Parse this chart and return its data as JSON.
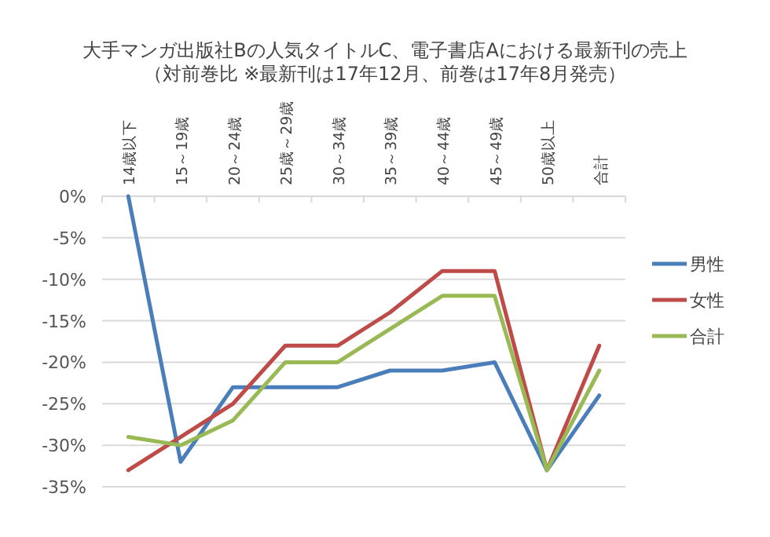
{
  "chart_data": {
    "type": "line",
    "title": "大手マンガ出版社Bの人気タイトルC、電子書店Aにおける最新刊の売上",
    "subtitle": "（対前巻比 ※最新刊は17年12月、前巻は17年8月発売）",
    "categories": [
      "14歳以下",
      "15～19歳",
      "20～24歳",
      "25歳～29歳",
      "30～34歳",
      "35～39歳",
      "40～44歳",
      "45～49歳",
      "50歳以上",
      "合計"
    ],
    "series": [
      {
        "name": "男性",
        "color": "#4a7ebb",
        "values": [
          0,
          -32,
          -23,
          -23,
          -23,
          -21,
          -21,
          -20,
          -33,
          -24
        ]
      },
      {
        "name": "女性",
        "color": "#be4b48",
        "values": [
          -33,
          -29,
          -25,
          -18,
          -18,
          -14,
          -9,
          -9,
          -33,
          -18
        ]
      },
      {
        "name": "合計",
        "color": "#98b954",
        "values": [
          -29,
          -30,
          -27,
          -20,
          -20,
          -16,
          -12,
          -12,
          -33,
          -21
        ]
      }
    ],
    "ylim": [
      -35,
      0
    ],
    "yticks": [
      {
        "value": 0,
        "label": "0%"
      },
      {
        "value": -5,
        "label": "-5%"
      },
      {
        "value": -10,
        "label": "-10%"
      },
      {
        "value": -15,
        "label": "-15%"
      },
      {
        "value": -20,
        "label": "-20%"
      },
      {
        "value": -25,
        "label": "-25%"
      },
      {
        "value": -30,
        "label": "-30%"
      },
      {
        "value": -35,
        "label": "-35%"
      }
    ],
    "grid": "y",
    "legend": "right"
  }
}
